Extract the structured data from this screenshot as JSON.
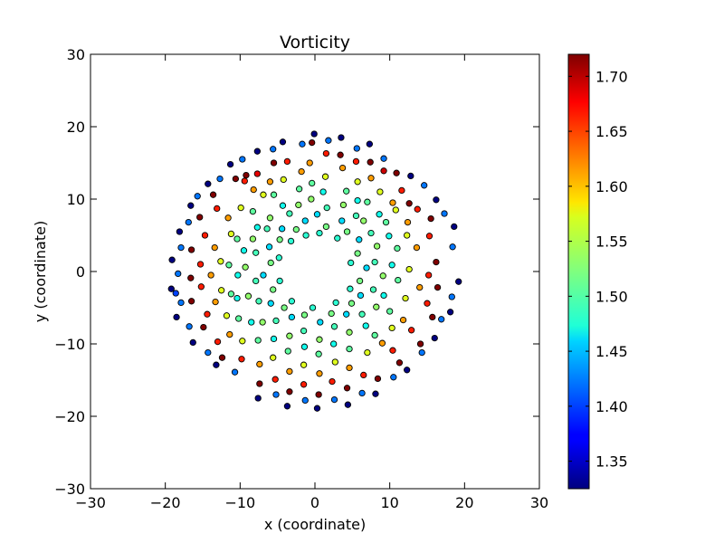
{
  "chart_data": {
    "type": "scatter",
    "title": "Vorticity",
    "xlabel": "x (coordinate)",
    "ylabel": "y (coordinate)",
    "xlim": [
      -30,
      30
    ],
    "ylim": [
      -30,
      30
    ],
    "xticks": [
      -30,
      -20,
      -10,
      0,
      10,
      20,
      30
    ],
    "yticks": [
      -30,
      -20,
      -10,
      0,
      10,
      20,
      30
    ],
    "xtick_labels": [
      "−30",
      "−20",
      "−10",
      "0",
      "10",
      "20",
      "30"
    ],
    "ytick_labels": [
      "−30",
      "−20",
      "−10",
      "0",
      "10",
      "20",
      "30"
    ],
    "grid": false,
    "colorbar": {
      "colormap": "jet",
      "range": [
        1.325,
        1.72
      ],
      "ticks": [
        1.35,
        1.4,
        1.45,
        1.5,
        1.55,
        1.6,
        1.65,
        1.7
      ],
      "tick_labels": [
        "1.35",
        "1.40",
        "1.45",
        "1.50",
        "1.55",
        "1.60",
        "1.65",
        "1.70"
      ]
    },
    "points": [
      {
        "x": -0.1,
        "y": 19.0,
        "c": 1.325
      },
      {
        "x": 3.5,
        "y": 18.5,
        "c": 1.325
      },
      {
        "x": 7.3,
        "y": 17.6,
        "c": 1.325
      },
      {
        "x": 12.8,
        "y": 13.2,
        "c": 1.325
      },
      {
        "x": 16.2,
        "y": 9.9,
        "c": 1.325
      },
      {
        "x": 18.6,
        "y": 6.2,
        "c": 1.325
      },
      {
        "x": 19.2,
        "y": -1.4,
        "c": 1.325
      },
      {
        "x": 18.1,
        "y": -5.6,
        "c": 1.325
      },
      {
        "x": 16.0,
        "y": -9.2,
        "c": 1.325
      },
      {
        "x": 12.3,
        "y": -13.6,
        "c": 1.325
      },
      {
        "x": 8.1,
        "y": -16.9,
        "c": 1.325
      },
      {
        "x": 4.4,
        "y": -18.4,
        "c": 1.325
      },
      {
        "x": 0.3,
        "y": -18.9,
        "c": 1.325
      },
      {
        "x": -3.7,
        "y": -18.6,
        "c": 1.325
      },
      {
        "x": -7.6,
        "y": -17.5,
        "c": 1.325
      },
      {
        "x": -13.2,
        "y": -12.9,
        "c": 1.325
      },
      {
        "x": -16.3,
        "y": -9.8,
        "c": 1.325
      },
      {
        "x": -18.5,
        "y": -6.3,
        "c": 1.325
      },
      {
        "x": -19.2,
        "y": -2.4,
        "c": 1.325
      },
      {
        "x": -19.1,
        "y": 1.6,
        "c": 1.325
      },
      {
        "x": -18.1,
        "y": 5.5,
        "c": 1.325
      },
      {
        "x": -16.6,
        "y": 9.1,
        "c": 1.325
      },
      {
        "x": -14.3,
        "y": 12.1,
        "c": 1.325
      },
      {
        "x": -11.3,
        "y": 14.8,
        "c": 1.325
      },
      {
        "x": -7.7,
        "y": 16.6,
        "c": 1.325
      },
      {
        "x": -4.3,
        "y": 17.9,
        "c": 1.325
      },
      {
        "x": 1.8,
        "y": 18.1,
        "c": 1.42
      },
      {
        "x": 5.6,
        "y": 17.0,
        "c": 1.42
      },
      {
        "x": 9.2,
        "y": 15.6,
        "c": 1.42
      },
      {
        "x": 14.6,
        "y": 11.9,
        "c": 1.42
      },
      {
        "x": 17.3,
        "y": 8.0,
        "c": 1.42
      },
      {
        "x": 18.4,
        "y": 3.4,
        "c": 1.42
      },
      {
        "x": 18.3,
        "y": -3.5,
        "c": 1.42
      },
      {
        "x": 16.9,
        "y": -6.6,
        "c": 1.42
      },
      {
        "x": 14.3,
        "y": -11.2,
        "c": 1.42
      },
      {
        "x": 10.5,
        "y": -14.6,
        "c": 1.42
      },
      {
        "x": 6.3,
        "y": -16.8,
        "c": 1.42
      },
      {
        "x": 2.6,
        "y": -17.7,
        "c": 1.42
      },
      {
        "x": -1.3,
        "y": -17.8,
        "c": 1.42
      },
      {
        "x": -5.2,
        "y": -17.0,
        "c": 1.42
      },
      {
        "x": -10.7,
        "y": -13.9,
        "c": 1.42
      },
      {
        "x": -14.3,
        "y": -11.2,
        "c": 1.42
      },
      {
        "x": -16.8,
        "y": -7.6,
        "c": 1.42
      },
      {
        "x": -17.9,
        "y": -4.3,
        "c": 1.42
      },
      {
        "x": -18.3,
        "y": -0.3,
        "c": 1.42
      },
      {
        "x": -17.9,
        "y": 3.3,
        "c": 1.42
      },
      {
        "x": -16.9,
        "y": 6.8,
        "c": 1.42
      },
      {
        "x": -15.7,
        "y": 10.4,
        "c": 1.42
      },
      {
        "x": -12.7,
        "y": 12.8,
        "c": 1.42
      },
      {
        "x": -9.7,
        "y": 15.5,
        "c": 1.42
      },
      {
        "x": -5.6,
        "y": 16.9,
        "c": 1.42
      },
      {
        "x": -1.7,
        "y": 17.6,
        "c": 1.42
      },
      {
        "x": -18.6,
        "y": -3.0,
        "c": 1.4
      },
      {
        "x": -0.4,
        "y": 17.8,
        "c": 1.72
      },
      {
        "x": 3.4,
        "y": 16.1,
        "c": 1.72
      },
      {
        "x": 7.4,
        "y": 15.1,
        "c": 1.72
      },
      {
        "x": 10.9,
        "y": 13.6,
        "c": 1.72
      },
      {
        "x": 12.6,
        "y": 9.4,
        "c": 1.72
      },
      {
        "x": 15.5,
        "y": 7.3,
        "c": 1.72
      },
      {
        "x": 16.2,
        "y": 1.3,
        "c": 1.72
      },
      {
        "x": 16.4,
        "y": -2.2,
        "c": 1.72
      },
      {
        "x": 15.7,
        "y": -6.3,
        "c": 1.72
      },
      {
        "x": 14.1,
        "y": -10.0,
        "c": 1.72
      },
      {
        "x": 11.3,
        "y": -12.6,
        "c": 1.72
      },
      {
        "x": 8.4,
        "y": -14.8,
        "c": 1.72
      },
      {
        "x": 4.3,
        "y": -16.1,
        "c": 1.72
      },
      {
        "x": 0.5,
        "y": -17.0,
        "c": 1.72
      },
      {
        "x": -3.4,
        "y": -16.6,
        "c": 1.72
      },
      {
        "x": -7.4,
        "y": -15.5,
        "c": 1.72
      },
      {
        "x": -12.4,
        "y": -11.9,
        "c": 1.72
      },
      {
        "x": -14.9,
        "y": -7.7,
        "c": 1.72
      },
      {
        "x": -16.5,
        "y": -4.1,
        "c": 1.72
      },
      {
        "x": -16.6,
        "y": -0.9,
        "c": 1.72
      },
      {
        "x": -16.5,
        "y": 3.0,
        "c": 1.72
      },
      {
        "x": -15.4,
        "y": 7.5,
        "c": 1.72
      },
      {
        "x": -13.6,
        "y": 10.6,
        "c": 1.72
      },
      {
        "x": -10.6,
        "y": 12.8,
        "c": 1.72
      },
      {
        "x": -9.2,
        "y": 13.3,
        "c": 1.72
      },
      {
        "x": -5.5,
        "y": 15.0,
        "c": 1.72
      },
      {
        "x": 1.5,
        "y": 16.3,
        "c": 1.66
      },
      {
        "x": 5.5,
        "y": 15.2,
        "c": 1.66
      },
      {
        "x": 11.6,
        "y": 11.2,
        "c": 1.66
      },
      {
        "x": 13.7,
        "y": 8.6,
        "c": 1.66
      },
      {
        "x": 15.3,
        "y": 4.9,
        "c": 1.66
      },
      {
        "x": 15.2,
        "y": -0.5,
        "c": 1.66
      },
      {
        "x": 15.0,
        "y": -4.4,
        "c": 1.66
      },
      {
        "x": 12.9,
        "y": -8.1,
        "c": 1.66
      },
      {
        "x": 10.4,
        "y": -10.9,
        "c": 1.66
      },
      {
        "x": 6.5,
        "y": -14.3,
        "c": 1.66
      },
      {
        "x": 2.3,
        "y": -15.2,
        "c": 1.66
      },
      {
        "x": -1.5,
        "y": -15.6,
        "c": 1.66
      },
      {
        "x": -5.3,
        "y": -14.9,
        "c": 1.66
      },
      {
        "x": -9.8,
        "y": -12.1,
        "c": 1.66
      },
      {
        "x": -13.0,
        "y": -9.7,
        "c": 1.66
      },
      {
        "x": -14.4,
        "y": -5.9,
        "c": 1.66
      },
      {
        "x": -15.2,
        "y": -2.1,
        "c": 1.66
      },
      {
        "x": -15.3,
        "y": 1.0,
        "c": 1.66
      },
      {
        "x": -14.7,
        "y": 5.0,
        "c": 1.66
      },
      {
        "x": -13.1,
        "y": 8.7,
        "c": 1.66
      },
      {
        "x": -9.4,
        "y": 12.5,
        "c": 1.66
      },
      {
        "x": -3.7,
        "y": 15.2,
        "c": 1.66
      },
      {
        "x": -7.7,
        "y": 13.5,
        "c": 1.68
      },
      {
        "x": 9.2,
        "y": 13.9,
        "c": 1.69
      },
      {
        "x": -0.7,
        "y": 15.0,
        "c": 1.61
      },
      {
        "x": 3.7,
        "y": 14.3,
        "c": 1.61
      },
      {
        "x": 7.5,
        "y": 12.9,
        "c": 1.61
      },
      {
        "x": 12.4,
        "y": 6.8,
        "c": 1.61
      },
      {
        "x": 13.6,
        "y": 3.3,
        "c": 1.61
      },
      {
        "x": 14.0,
        "y": -2.2,
        "c": 1.61
      },
      {
        "x": 11.8,
        "y": -6.7,
        "c": 1.61
      },
      {
        "x": 9.0,
        "y": -9.9,
        "c": 1.61
      },
      {
        "x": 4.6,
        "y": -13.3,
        "c": 1.61
      },
      {
        "x": 0.6,
        "y": -14.1,
        "c": 1.61
      },
      {
        "x": -3.4,
        "y": -13.8,
        "c": 1.61
      },
      {
        "x": -7.4,
        "y": -12.8,
        "c": 1.61
      },
      {
        "x": -11.4,
        "y": -8.7,
        "c": 1.61
      },
      {
        "x": -13.3,
        "y": -4.2,
        "c": 1.61
      },
      {
        "x": -13.9,
        "y": -0.5,
        "c": 1.61
      },
      {
        "x": -13.4,
        "y": 3.3,
        "c": 1.61
      },
      {
        "x": -11.6,
        "y": 7.4,
        "c": 1.61
      },
      {
        "x": -8.2,
        "y": 11.3,
        "c": 1.61
      },
      {
        "x": -1.8,
        "y": 13.8,
        "c": 1.61
      },
      {
        "x": -6.0,
        "y": 12.4,
        "c": 1.61
      },
      {
        "x": 10.4,
        "y": 9.5,
        "c": 1.61
      },
      {
        "x": 1.4,
        "y": 13.1,
        "c": 1.56
      },
      {
        "x": 5.7,
        "y": 12.4,
        "c": 1.56
      },
      {
        "x": 8.7,
        "y": 11.0,
        "c": 1.56
      },
      {
        "x": 10.8,
        "y": 8.5,
        "c": 1.56
      },
      {
        "x": 12.3,
        "y": 5.0,
        "c": 1.56
      },
      {
        "x": 12.6,
        "y": 0.3,
        "c": 1.56
      },
      {
        "x": 12.1,
        "y": -3.7,
        "c": 1.56
      },
      {
        "x": 10.3,
        "y": -7.8,
        "c": 1.56
      },
      {
        "x": 7.0,
        "y": -11.2,
        "c": 1.56
      },
      {
        "x": 2.7,
        "y": -12.5,
        "c": 1.56
      },
      {
        "x": -1.5,
        "y": -12.9,
        "c": 1.56
      },
      {
        "x": -5.6,
        "y": -11.9,
        "c": 1.56
      },
      {
        "x": -9.7,
        "y": -9.6,
        "c": 1.56
      },
      {
        "x": -11.8,
        "y": -6.1,
        "c": 1.56
      },
      {
        "x": -12.5,
        "y": -2.6,
        "c": 1.56
      },
      {
        "x": -12.6,
        "y": 1.4,
        "c": 1.56
      },
      {
        "x": -11.2,
        "y": 5.2,
        "c": 1.56
      },
      {
        "x": -9.9,
        "y": 8.8,
        "c": 1.56
      },
      {
        "x": -4.2,
        "y": 12.7,
        "c": 1.56
      },
      {
        "x": -6.9,
        "y": 10.6,
        "c": 1.56
      },
      {
        "x": -0.4,
        "y": 12.2,
        "c": 1.51
      },
      {
        "x": 4.2,
        "y": 11.1,
        "c": 1.51
      },
      {
        "x": 7.0,
        "y": 9.6,
        "c": 1.51
      },
      {
        "x": 9.5,
        "y": 6.8,
        "c": 1.51
      },
      {
        "x": 11.0,
        "y": 3.2,
        "c": 1.51
      },
      {
        "x": 11.1,
        "y": -1.2,
        "c": 1.51
      },
      {
        "x": 10.0,
        "y": -5.5,
        "c": 1.51
      },
      {
        "x": 8.0,
        "y": -8.8,
        "c": 1.51
      },
      {
        "x": 4.6,
        "y": -10.7,
        "c": 1.51
      },
      {
        "x": 0.5,
        "y": -11.4,
        "c": 1.51
      },
      {
        "x": -3.6,
        "y": -11.0,
        "c": 1.51
      },
      {
        "x": -7.6,
        "y": -9.5,
        "c": 1.51
      },
      {
        "x": -10.2,
        "y": -6.5,
        "c": 1.51
      },
      {
        "x": -11.2,
        "y": -3.1,
        "c": 1.51
      },
      {
        "x": -11.5,
        "y": 0.9,
        "c": 1.51
      },
      {
        "x": -10.4,
        "y": 4.5,
        "c": 1.51
      },
      {
        "x": -8.3,
        "y": 8.3,
        "c": 1.51
      },
      {
        "x": -5.5,
        "y": 10.6,
        "c": 1.51
      },
      {
        "x": -2.1,
        "y": 11.4,
        "c": 1.51
      },
      {
        "x": 1.1,
        "y": 11.0,
        "c": 1.48
      },
      {
        "x": 5.7,
        "y": 9.8,
        "c": 1.48
      },
      {
        "x": 8.6,
        "y": 7.9,
        "c": 1.48
      },
      {
        "x": 9.9,
        "y": 4.9,
        "c": 1.48
      },
      {
        "x": 10.3,
        "y": 0.9,
        "c": 1.48
      },
      {
        "x": 9.2,
        "y": -3.3,
        "c": 1.48
      },
      {
        "x": 6.8,
        "y": -7.5,
        "c": 1.48
      },
      {
        "x": 2.5,
        "y": -10.0,
        "c": 1.48
      },
      {
        "x": -1.4,
        "y": -10.4,
        "c": 1.48
      },
      {
        "x": -5.5,
        "y": -9.3,
        "c": 1.48
      },
      {
        "x": -8.5,
        "y": -7.0,
        "c": 1.48
      },
      {
        "x": -10.4,
        "y": -3.7,
        "c": 1.48
      },
      {
        "x": -10.3,
        "y": -0.5,
        "c": 1.48
      },
      {
        "x": -9.5,
        "y": 2.9,
        "c": 1.48
      },
      {
        "x": -7.7,
        "y": 6.1,
        "c": 1.48
      },
      {
        "x": -4.3,
        "y": 9.1,
        "c": 1.48
      },
      {
        "x": -0.5,
        "y": 10.0,
        "c": 1.53
      },
      {
        "x": 3.8,
        "y": 9.2,
        "c": 1.53
      },
      {
        "x": 6.5,
        "y": 7.0,
        "c": 1.53
      },
      {
        "x": 8.3,
        "y": 3.5,
        "c": 1.53
      },
      {
        "x": 9.1,
        "y": -0.6,
        "c": 1.53
      },
      {
        "x": 8.2,
        "y": -4.9,
        "c": 1.53
      },
      {
        "x": 4.6,
        "y": -8.4,
        "c": 1.53
      },
      {
        "x": 0.6,
        "y": -9.4,
        "c": 1.53
      },
      {
        "x": -3.4,
        "y": -8.9,
        "c": 1.53
      },
      {
        "x": -7.0,
        "y": -7.0,
        "c": 1.53
      },
      {
        "x": -8.9,
        "y": -3.4,
        "c": 1.53
      },
      {
        "x": -9.3,
        "y": 0.6,
        "c": 1.53
      },
      {
        "x": -8.3,
        "y": 4.5,
        "c": 1.53
      },
      {
        "x": -6.0,
        "y": 7.4,
        "c": 1.53
      },
      {
        "x": -2.2,
        "y": 9.2,
        "c": 1.53
      },
      {
        "x": 1.6,
        "y": 8.8,
        "c": 1.5
      },
      {
        "x": 5.5,
        "y": 7.7,
        "c": 1.5
      },
      {
        "x": 7.5,
        "y": 5.3,
        "c": 1.5
      },
      {
        "x": 8.0,
        "y": 1.3,
        "c": 1.5
      },
      {
        "x": 7.8,
        "y": -2.5,
        "c": 1.5
      },
      {
        "x": 6.3,
        "y": -5.9,
        "c": 1.5
      },
      {
        "x": 2.6,
        "y": -7.6,
        "c": 1.5
      },
      {
        "x": -1.5,
        "y": -8.2,
        "c": 1.5
      },
      {
        "x": -5.2,
        "y": -6.8,
        "c": 1.5
      },
      {
        "x": -7.5,
        "y": -4.1,
        "c": 1.5
      },
      {
        "x": -7.9,
        "y": -1.3,
        "c": 1.5
      },
      {
        "x": -7.9,
        "y": 2.6,
        "c": 1.5
      },
      {
        "x": -6.4,
        "y": 5.9,
        "c": 1.5
      },
      {
        "x": -3.4,
        "y": 8.0,
        "c": 1.5
      },
      {
        "x": 0.3,
        "y": 7.9,
        "c": 1.46
      },
      {
        "x": 3.6,
        "y": 7.0,
        "c": 1.46
      },
      {
        "x": 5.9,
        "y": 4.4,
        "c": 1.46
      },
      {
        "x": 6.9,
        "y": 0.5,
        "c": 1.46
      },
      {
        "x": 6.1,
        "y": -3.3,
        "c": 1.46
      },
      {
        "x": 4.2,
        "y": -5.9,
        "c": 1.46
      },
      {
        "x": 0.7,
        "y": -7.0,
        "c": 1.46
      },
      {
        "x": -3.1,
        "y": -6.3,
        "c": 1.46
      },
      {
        "x": -5.9,
        "y": -4.4,
        "c": 1.46
      },
      {
        "x": -6.9,
        "y": -0.5,
        "c": 1.46
      },
      {
        "x": -6.1,
        "y": 3.4,
        "c": 1.46
      },
      {
        "x": -4.4,
        "y": 5.9,
        "c": 1.46
      },
      {
        "x": -1.3,
        "y": 7.0,
        "c": 1.46
      },
      {
        "x": 1.5,
        "y": 6.2,
        "c": 1.52
      },
      {
        "x": 4.3,
        "y": 5.5,
        "c": 1.52
      },
      {
        "x": 5.7,
        "y": 2.5,
        "c": 1.52
      },
      {
        "x": 6.0,
        "y": -1.3,
        "c": 1.52
      },
      {
        "x": 4.9,
        "y": -4.4,
        "c": 1.52
      },
      {
        "x": 2.2,
        "y": -5.8,
        "c": 1.52
      },
      {
        "x": -1.4,
        "y": -6.0,
        "c": 1.52
      },
      {
        "x": -4.1,
        "y": -5.0,
        "c": 1.52
      },
      {
        "x": -5.6,
        "y": -2.5,
        "c": 1.52
      },
      {
        "x": -5.9,
        "y": 1.2,
        "c": 1.52
      },
      {
        "x": -4.7,
        "y": 4.4,
        "c": 1.52
      },
      {
        "x": -2.5,
        "y": 5.8,
        "c": 1.52
      },
      {
        "x": 0.6,
        "y": 5.3,
        "c": 1.49
      },
      {
        "x": 3.0,
        "y": 4.6,
        "c": 1.49
      },
      {
        "x": 4.8,
        "y": 1.2,
        "c": 1.49
      },
      {
        "x": 4.7,
        "y": -2.4,
        "c": 1.49
      },
      {
        "x": 2.8,
        "y": -4.3,
        "c": 1.49
      },
      {
        "x": -0.3,
        "y": -5.0,
        "c": 1.49
      },
      {
        "x": -3.1,
        "y": -4.1,
        "c": 1.49
      },
      {
        "x": -4.7,
        "y": -1.3,
        "c": 1.49
      },
      {
        "x": -4.8,
        "y": 1.9,
        "c": 1.49
      },
      {
        "x": -3.2,
        "y": 4.2,
        "c": 1.49
      },
      {
        "x": -1.2,
        "y": 5.0,
        "c": 1.49
      }
    ]
  }
}
